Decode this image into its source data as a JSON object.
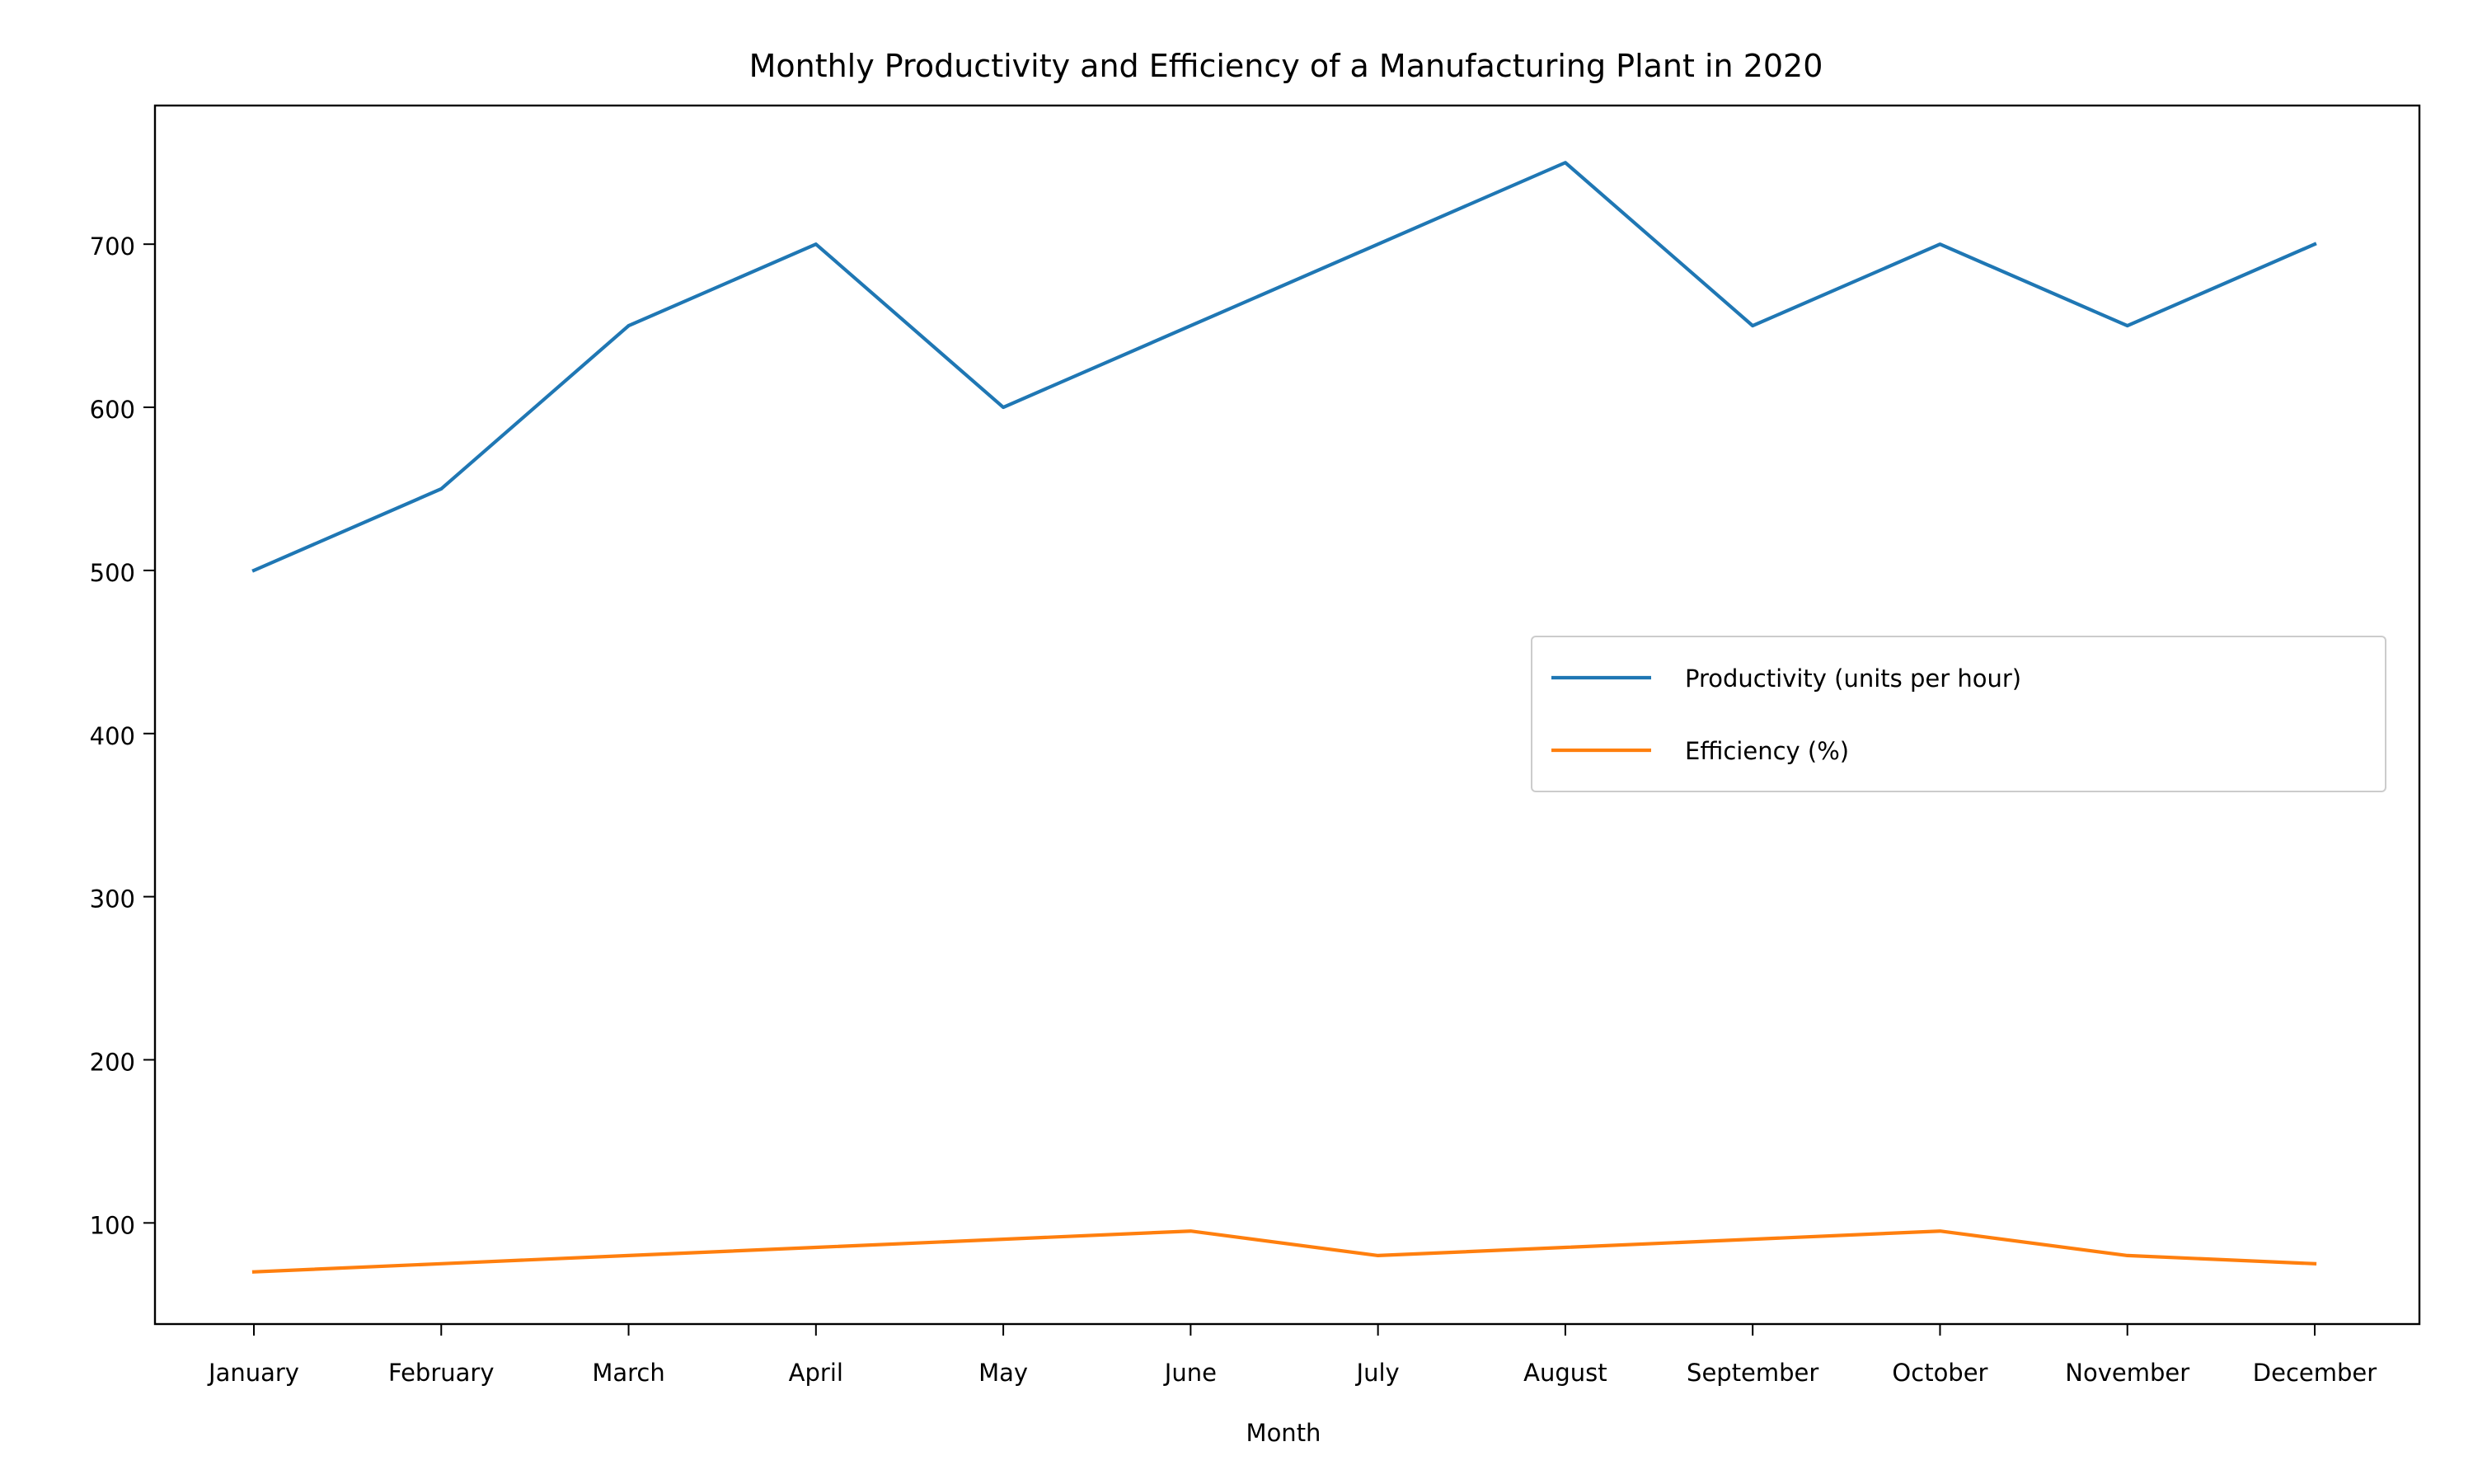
{
  "chart_data": {
    "type": "line",
    "title": "Monthly Productivity and Efficiency of a Manufacturing Plant in 2020",
    "xlabel": "Month",
    "ylabel": "",
    "categories": [
      "January",
      "February",
      "March",
      "April",
      "May",
      "June",
      "July",
      "August",
      "September",
      "October",
      "November",
      "December"
    ],
    "series": [
      {
        "name": "Productivity (units per hour)",
        "color": "#1f77b4",
        "values": [
          500,
          550,
          650,
          700,
          600,
          650,
          700,
          750,
          650,
          700,
          650,
          700
        ]
      },
      {
        "name": "Efficiency (%)",
        "color": "#ff7f0e",
        "values": [
          70,
          75,
          80,
          85,
          90,
          95,
          80,
          85,
          90,
          95,
          80,
          75
        ]
      }
    ],
    "ylim": [
      38,
      785
    ],
    "yticks": [
      100,
      200,
      300,
      400,
      500,
      600,
      700
    ],
    "grid": false,
    "legend_position": "center-right"
  }
}
